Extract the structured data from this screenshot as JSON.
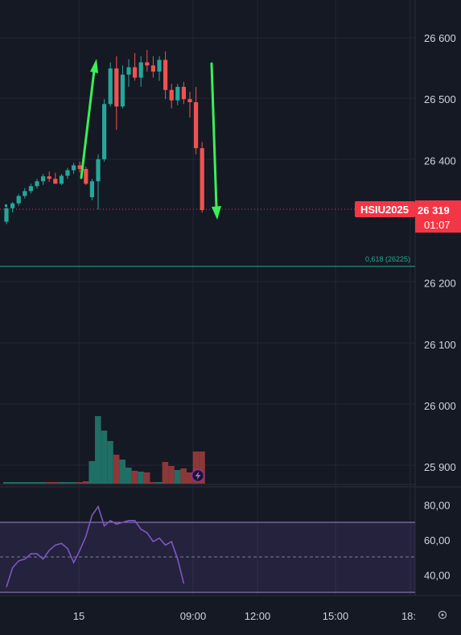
{
  "chart_data": {
    "type": "candlestick",
    "instrument": "HSIU2025",
    "last_price": "26 319",
    "countdown": "01:07",
    "price_axis_ticks": [
      {
        "value": 26600,
        "label": "26 600"
      },
      {
        "value": 26500,
        "label": "26 500"
      },
      {
        "value": 26400,
        "label": "26 400"
      },
      {
        "value": 26200,
        "label": "26 200"
      },
      {
        "value": 26100,
        "label": "26 100"
      },
      {
        "value": 26000,
        "label": "26 000"
      },
      {
        "value": 25900,
        "label": "25 900"
      }
    ],
    "fib_level": {
      "label": "0,618 (26225)",
      "value": 26225
    },
    "time_axis": [
      "15",
      "09:00",
      "12:00",
      "15:00",
      "18:"
    ],
    "oscillator_axis": [
      {
        "value": 80,
        "label": "80,00"
      },
      {
        "value": 60,
        "label": "60,00"
      },
      {
        "value": 40,
        "label": "40,00"
      }
    ],
    "oscillator_band": [
      70,
      30
    ],
    "colors": {
      "up": "#26a69a",
      "down": "#ef5350",
      "price_tag": "#f23645",
      "fib_line": "#22ab94",
      "oscillator": "#7e57c2",
      "arrow": "#3af056"
    },
    "candles": [
      {
        "o": 26300,
        "h": 26324,
        "l": 26296,
        "c": 26322
      },
      {
        "o": 26322,
        "h": 26332,
        "l": 26315,
        "c": 26330
      },
      {
        "o": 26330,
        "h": 26345,
        "l": 26326,
        "c": 26342
      },
      {
        "o": 26342,
        "h": 26355,
        "l": 26338,
        "c": 26350
      },
      {
        "o": 26350,
        "h": 26362,
        "l": 26346,
        "c": 26358
      },
      {
        "o": 26358,
        "h": 26370,
        "l": 26354,
        "c": 26366
      },
      {
        "o": 26366,
        "h": 26378,
        "l": 26360,
        "c": 26374
      },
      {
        "o": 26374,
        "h": 26382,
        "l": 26365,
        "c": 26370
      },
      {
        "o": 26370,
        "h": 26380,
        "l": 26362,
        "c": 26362
      },
      {
        "o": 26362,
        "h": 26378,
        "l": 26360,
        "c": 26375
      },
      {
        "o": 26375,
        "h": 26388,
        "l": 26370,
        "c": 26384
      },
      {
        "o": 26384,
        "h": 26396,
        "l": 26378,
        "c": 26392
      },
      {
        "o": 26392,
        "h": 26398,
        "l": 26380,
        "c": 26386
      },
      {
        "o": 26386,
        "h": 26390,
        "l": 26360,
        "c": 26362
      },
      {
        "o": 26340,
        "h": 26370,
        "l": 26335,
        "c": 26366
      },
      {
        "o": 26366,
        "h": 26410,
        "l": 26320,
        "c": 26402
      },
      {
        "o": 26402,
        "h": 26500,
        "l": 26398,
        "c": 26492
      },
      {
        "o": 26492,
        "h": 26560,
        "l": 26488,
        "c": 26550
      },
      {
        "o": 26550,
        "h": 26570,
        "l": 26450,
        "c": 26488
      },
      {
        "o": 26488,
        "h": 26555,
        "l": 26485,
        "c": 26540
      },
      {
        "o": 26540,
        "h": 26565,
        "l": 26520,
        "c": 26552
      },
      {
        "o": 26552,
        "h": 26575,
        "l": 26530,
        "c": 26535
      },
      {
        "o": 26535,
        "h": 26570,
        "l": 26520,
        "c": 26560
      },
      {
        "o": 26560,
        "h": 26580,
        "l": 26545,
        "c": 26555
      },
      {
        "o": 26555,
        "h": 26570,
        "l": 26535,
        "c": 26545
      },
      {
        "o": 26545,
        "h": 26570,
        "l": 26530,
        "c": 26564
      },
      {
        "o": 26564,
        "h": 26578,
        "l": 26500,
        "c": 26515
      },
      {
        "o": 26515,
        "h": 26525,
        "l": 26485,
        "c": 26498
      },
      {
        "o": 26498,
        "h": 26525,
        "l": 26490,
        "c": 26520
      },
      {
        "o": 26520,
        "h": 26528,
        "l": 26492,
        "c": 26500
      },
      {
        "o": 26500,
        "h": 26512,
        "l": 26470,
        "c": 26495
      },
      {
        "o": 26495,
        "h": 26520,
        "l": 26410,
        "c": 26420
      },
      {
        "o": 26420,
        "h": 26430,
        "l": 26315,
        "c": 26319
      }
    ],
    "volumes": [
      2,
      2,
      2,
      2,
      2,
      2,
      2,
      2,
      2,
      2,
      2,
      2,
      2,
      3,
      28,
      84,
      66,
      53,
      36,
      30,
      20,
      16,
      15,
      14,
      2,
      2,
      27,
      22,
      17,
      19,
      14,
      40,
      40
    ],
    "oscillator_values": [
      33,
      44,
      48,
      49,
      52,
      52,
      49,
      54,
      57,
      58,
      55,
      47,
      54,
      62,
      74,
      79,
      68,
      71,
      69,
      70,
      71,
      71,
      66,
      64,
      59,
      61,
      57,
      59,
      49,
      35
    ]
  }
}
